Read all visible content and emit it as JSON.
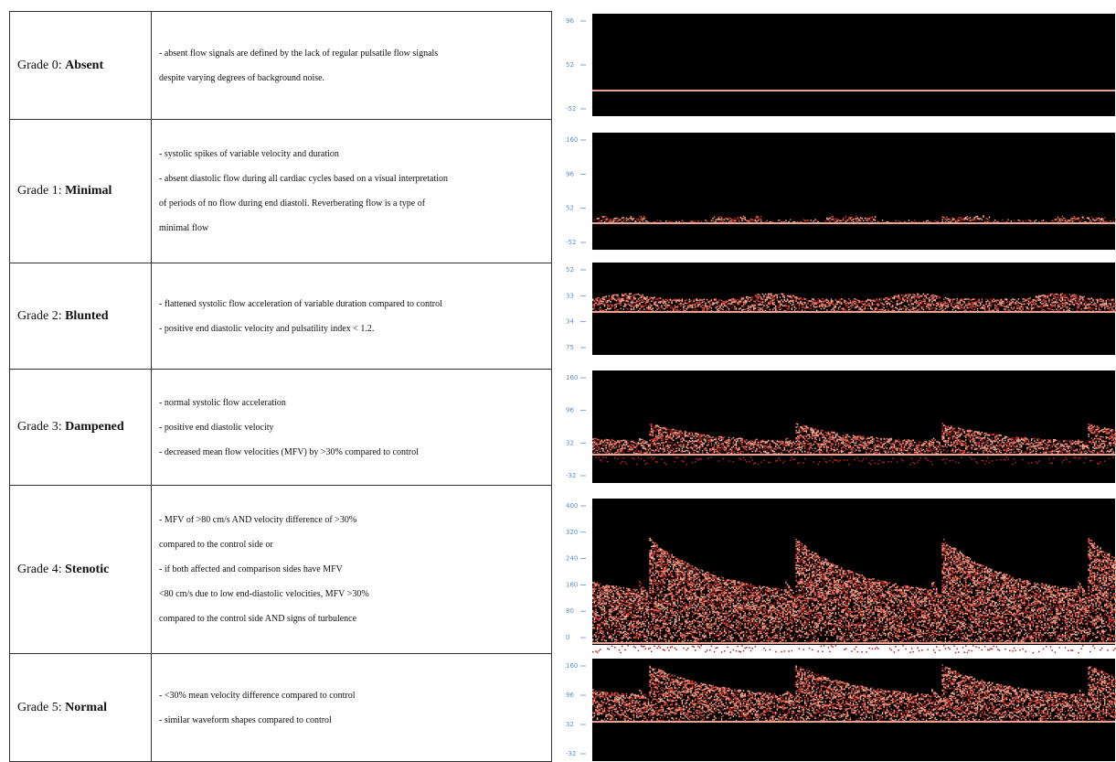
{
  "grades": [
    {
      "label": "Grade 0:",
      "name": "Absent",
      "lines": [
        "- absent flow signals are defined by the lack of regular pulsatile flow signals",
        "despite varying degrees of background noise."
      ],
      "ticks": [
        "96",
        "52",
        "-52"
      ]
    },
    {
      "label": "Grade 1:",
      "name": "Minimal",
      "lines": [
        "- systolic spikes of variable velocity and duration",
        "- absent diastolic flow during all cardiac cycles based on a visual interpretation",
        "of periods of no flow during end diastoli. Reverberating flow is a type of",
        "minimal flow"
      ],
      "ticks": [
        "160",
        "96",
        "52",
        "-52"
      ]
    },
    {
      "label": "Grade 2:",
      "name": "Blunted",
      "lines": [
        "- flattened systolic flow acceleration of variable duration compared to control",
        "- positive end diastolic velocity and pulsatility index < 1.2."
      ],
      "ticks": [
        "52",
        "33",
        "34",
        "75"
      ]
    },
    {
      "label": "Grade 3:",
      "name": "Dampened",
      "lines": [
        "- normal systolic flow acceleration",
        "- positive end diastolic velocity",
        "- decreased mean flow velocities (MFV) by >30% compared to control"
      ],
      "ticks": [
        "160",
        "96",
        "32",
        "-32"
      ]
    },
    {
      "label": "Grade 4:",
      "name": "Stenotic",
      "lines": [
        "- MFV of >80 cm/s AND velocity difference of >30%",
        "compared to the control side or",
        "- if both affected and comparison sides have MFV",
        "<80 cm/s due to low end-diastolic velocities, MFV >30%",
        "compared to the control side AND signs of turbulence"
      ],
      "ticks": [
        "400",
        "320",
        "240",
        "160",
        "80",
        "0"
      ]
    },
    {
      "label": "Grade 5:",
      "name": "Normal",
      "lines": [
        "- <30% mean velocity difference compared to control",
        "- similar waveform shapes compared to control"
      ],
      "ticks": [
        "160",
        "96",
        "32",
        "-32"
      ]
    }
  ]
}
